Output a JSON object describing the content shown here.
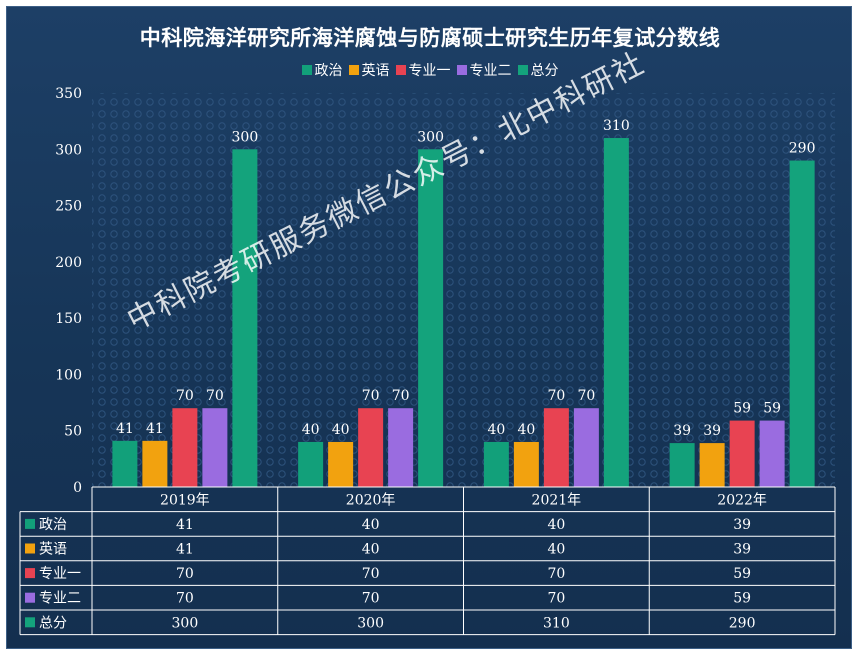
{
  "title": "中科院海洋研究所海洋腐蚀与防腐硕士研究生历年复试分数线",
  "watermark": "中科院考研服务微信公众号：北中科研社",
  "chart_data": {
    "type": "bar",
    "categories": [
      "2019年",
      "2020年",
      "2021年",
      "2022年"
    ],
    "series": [
      {
        "name": "政治",
        "values": [
          41,
          40,
          40,
          39
        ],
        "color": "#12a07a"
      },
      {
        "name": "英语",
        "values": [
          41,
          40,
          40,
          39
        ],
        "color": "#f2a20f"
      },
      {
        "name": "专业一",
        "values": [
          70,
          70,
          70,
          59
        ],
        "color": "#e84352"
      },
      {
        "name": "专业二",
        "values": [
          70,
          70,
          70,
          59
        ],
        "color": "#9a6ce0"
      },
      {
        "name": "总分",
        "values": [
          300,
          300,
          310,
          290
        ],
        "color": "#14a37c"
      }
    ],
    "yticks": [
      "0",
      "50",
      "100",
      "150",
      "200",
      "250",
      "300",
      "350"
    ],
    "ylim": [
      0,
      350
    ],
    "grid": false,
    "legend": "top-center",
    "data_table": true
  }
}
